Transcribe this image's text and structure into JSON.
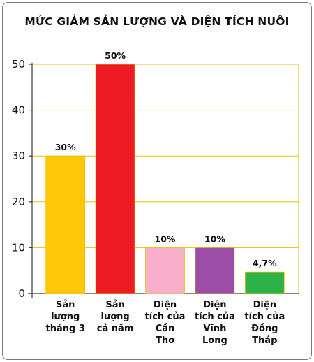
{
  "chart_data": {
    "type": "bar",
    "title": "MỨC GIẢM SẢN LƯỢNG VÀ DIỆN TÍCH NUÔI",
    "categories": [
      "Sản lượng tháng 3",
      "Sản lượng cả năm",
      "Diện tích của Cần Thơ",
      "Diện tích của Vĩnh Long",
      "Diện tích của Đồng Tháp"
    ],
    "category_lines": [
      [
        "Sản",
        "lượng",
        "tháng 3"
      ],
      [
        "Sản",
        "lượng",
        "cả năm"
      ],
      [
        "Diện",
        "tích của",
        "Cần",
        "Thơ"
      ],
      [
        "Diện",
        "tích của",
        "Vĩnh",
        "Long"
      ],
      [
        "Diện",
        "tích của",
        "Đồng",
        "Tháp"
      ]
    ],
    "values": [
      30,
      50,
      10,
      10,
      4.7
    ],
    "data_labels": [
      "30%",
      "50%",
      "10%",
      "10%",
      "4,7%"
    ],
    "colors": [
      "#FFC60A",
      "#ED1C24",
      "#F9AFC9",
      "#9B4DA8",
      "#2DB24A"
    ],
    "xlabel": "",
    "ylabel": "",
    "ylim": [
      0,
      50
    ],
    "yticks": [
      0,
      10,
      20,
      30,
      40,
      50
    ],
    "grid": true,
    "grid_color": "#E6C200",
    "legend": "none"
  }
}
